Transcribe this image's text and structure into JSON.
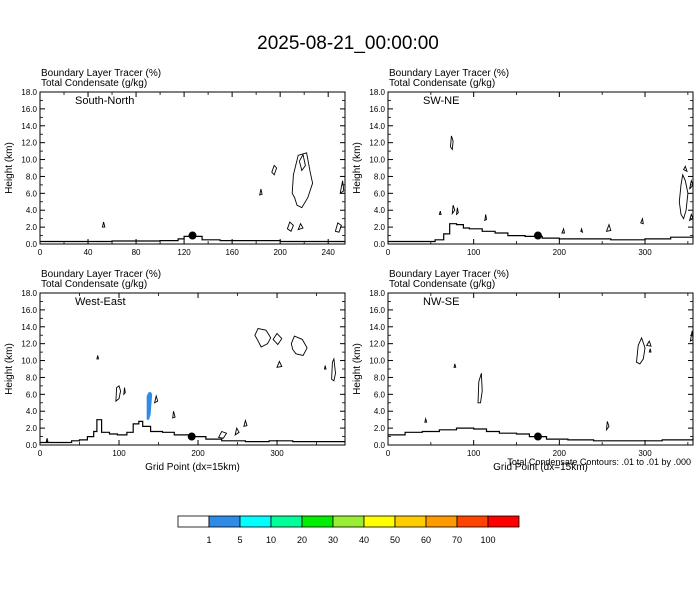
{
  "title": "2025-08-21_00:00:00",
  "colors": {
    "tracer": "#2e8ce6",
    "terrain": "#000000",
    "contour": "#000000"
  },
  "chart_data": [
    {
      "type": "contour",
      "panel": "South-North",
      "var1": "Boundary Layer Tracer   (%)",
      "var2": "Total Condensate   (g/kg)",
      "ylabel": "Height (km)",
      "xlabel": "",
      "xlim": [
        0,
        254
      ],
      "ylim": [
        0,
        18
      ],
      "xticks": [
        0,
        40,
        80,
        120,
        160,
        200,
        240
      ],
      "yticks": [
        "0.0",
        "2.0",
        "4.0",
        "6.0",
        "8.0",
        "10.0",
        "12.0",
        "14.0",
        "16.0",
        "18.0"
      ],
      "marker": {
        "x": 127,
        "y": 1.0
      },
      "terrain": [
        [
          0,
          0.3
        ],
        [
          30,
          0.3
        ],
        [
          60,
          0.35
        ],
        [
          80,
          0.35
        ],
        [
          100,
          0.4
        ],
        [
          115,
          0.6
        ],
        [
          120,
          0.9
        ],
        [
          130,
          0.9
        ],
        [
          135,
          0.5
        ],
        [
          150,
          0.4
        ],
        [
          200,
          0.3
        ],
        [
          254,
          0.3
        ]
      ],
      "tracer_patches": [],
      "contours": [
        [
          [
            250,
            6.0
          ],
          [
            252,
            7.5
          ],
          [
            253,
            6.3
          ]
        ],
        [
          [
            210,
            6.0
          ],
          [
            211,
            8.2
          ],
          [
            215,
            10.5
          ],
          [
            222,
            10.8
          ],
          [
            225,
            8.5
          ],
          [
            227,
            7.2
          ],
          [
            223,
            5.5
          ],
          [
            218,
            4.3
          ],
          [
            214,
            4.6
          ],
          [
            212,
            5.5
          ]
        ],
        [
          [
            216,
            9.8
          ],
          [
            219,
            10.6
          ],
          [
            221,
            9.3
          ],
          [
            218,
            8.7
          ]
        ],
        [
          [
            193,
            8.5
          ],
          [
            195,
            9.3
          ],
          [
            197,
            9.0
          ],
          [
            195,
            8.2
          ]
        ],
        [
          [
            206,
            1.8
          ],
          [
            208,
            2.6
          ],
          [
            211,
            2.2
          ],
          [
            209,
            1.5
          ]
        ],
        [
          [
            215,
            1.7
          ],
          [
            217,
            2.4
          ],
          [
            219,
            1.9
          ]
        ],
        [
          [
            246,
            1.5
          ],
          [
            248,
            2.5
          ],
          [
            251,
            2.2
          ],
          [
            249,
            1.4
          ]
        ],
        [
          [
            183,
            5.8
          ],
          [
            184,
            6.5
          ],
          [
            185,
            5.9
          ]
        ],
        [
          [
            52,
            2.0
          ],
          [
            53,
            2.6
          ],
          [
            54,
            2.0
          ]
        ]
      ]
    },
    {
      "type": "contour",
      "panel": "SW-NE",
      "var1": "Boundary Layer Tracer   (%)",
      "var2": "Total Condensate   (g/kg)",
      "ylabel": "Height (km)",
      "xlabel": "",
      "xlim": [
        0,
        356
      ],
      "ylim": [
        0,
        18
      ],
      "xticks": [
        0,
        100,
        200,
        300
      ],
      "yticks": [
        "0.0",
        "2.0",
        "4.0",
        "6.0",
        "8.0",
        "10.0",
        "12.0",
        "14.0",
        "16.0",
        "18.0"
      ],
      "marker": {
        "x": 175,
        "y": 1.0
      },
      "terrain": [
        [
          0,
          0.3
        ],
        [
          40,
          0.3
        ],
        [
          55,
          0.5
        ],
        [
          65,
          1.2
        ],
        [
          72,
          2.4
        ],
        [
          80,
          2.3
        ],
        [
          88,
          1.9
        ],
        [
          95,
          1.8
        ],
        [
          110,
          1.5
        ],
        [
          125,
          1.3
        ],
        [
          140,
          1.0
        ],
        [
          160,
          0.9
        ],
        [
          180,
          0.7
        ],
        [
          200,
          0.6
        ],
        [
          230,
          0.6
        ],
        [
          260,
          0.5
        ],
        [
          300,
          0.6
        ],
        [
          330,
          0.8
        ],
        [
          356,
          0.9
        ]
      ],
      "tracer_patches": [],
      "contours": [
        [
          [
            73,
            11.5
          ],
          [
            74,
            12.8
          ],
          [
            76,
            12.2
          ],
          [
            75,
            11.2
          ]
        ],
        [
          [
            75,
            3.6
          ],
          [
            76,
            4.6
          ],
          [
            78,
            4.0
          ]
        ],
        [
          [
            80,
            3.5
          ],
          [
            81,
            4.3
          ],
          [
            82,
            3.7
          ]
        ],
        [
          [
            60,
            3.5
          ],
          [
            61,
            3.9
          ],
          [
            62,
            3.5
          ]
        ],
        [
          [
            113,
            2.8
          ],
          [
            114,
            3.5
          ],
          [
            115,
            2.9
          ]
        ],
        [
          [
            340,
            5.0
          ],
          [
            342,
            7.0
          ],
          [
            344,
            8.2
          ],
          [
            347,
            7.5
          ],
          [
            350,
            6.0
          ],
          [
            348,
            4.0
          ],
          [
            345,
            3.0
          ],
          [
            342,
            3.5
          ]
        ],
        [
          [
            345,
            8.8
          ],
          [
            347,
            9.2
          ],
          [
            349,
            8.6
          ]
        ],
        [
          [
            352,
            6.5
          ],
          [
            354,
            7.5
          ],
          [
            356,
            7.0
          ]
        ],
        [
          [
            295,
            2.5
          ],
          [
            297,
            3.0
          ],
          [
            298,
            2.4
          ]
        ],
        [
          [
            352,
            2.8
          ],
          [
            354,
            3.5
          ],
          [
            356,
            3.0
          ]
        ],
        [
          [
            255,
            1.5
          ],
          [
            258,
            2.3
          ],
          [
            260,
            1.6
          ]
        ],
        [
          [
            203,
            1.3
          ],
          [
            205,
            1.8
          ],
          [
            206,
            1.3
          ]
        ],
        [
          [
            225,
            1.5
          ],
          [
            226,
            1.8
          ],
          [
            227,
            1.4
          ]
        ]
      ]
    },
    {
      "type": "contour",
      "panel": "West-East",
      "var1": "Boundary Layer Tracer   (%)",
      "var2": "Total Condensate   (g/kg)",
      "ylabel": "Height (km)",
      "xlabel": "Grid Point (dx=15km)",
      "xlim": [
        0,
        386
      ],
      "ylim": [
        0,
        18
      ],
      "xticks": [
        0,
        100,
        200,
        300
      ],
      "yticks": [
        "0.0",
        "2.0",
        "4.0",
        "6.0",
        "8.0",
        "10.0",
        "12.0",
        "14.0",
        "16.0",
        "18.0"
      ],
      "marker": {
        "x": 192,
        "y": 1.0
      },
      "terrain": [
        [
          0,
          0.3
        ],
        [
          20,
          0.3
        ],
        [
          40,
          0.5
        ],
        [
          50,
          0.6
        ],
        [
          60,
          1.0
        ],
        [
          68,
          1.6
        ],
        [
          72,
          3.0
        ],
        [
          78,
          1.5
        ],
        [
          88,
          1.3
        ],
        [
          98,
          1.2
        ],
        [
          110,
          1.5
        ],
        [
          118,
          2.5
        ],
        [
          125,
          2.8
        ],
        [
          130,
          2.2
        ],
        [
          140,
          1.6
        ],
        [
          155,
          1.5
        ],
        [
          170,
          1.2
        ],
        [
          190,
          1.0
        ],
        [
          210,
          0.7
        ],
        [
          230,
          0.5
        ],
        [
          260,
          0.4
        ],
        [
          290,
          0.5
        ],
        [
          320,
          0.4
        ],
        [
          386,
          0.4
        ]
      ],
      "tracer_patches": [
        [
          [
            135,
            3.0
          ],
          [
            135,
            5.8
          ],
          [
            137,
            6.2
          ],
          [
            140,
            6.3
          ],
          [
            142,
            6.0
          ],
          [
            141,
            4.8
          ],
          [
            140,
            3.6
          ],
          [
            138,
            3.0
          ]
        ]
      ],
      "contours": [
        [
          [
            96,
            5.2
          ],
          [
            97,
            6.8
          ],
          [
            100,
            7.0
          ],
          [
            102,
            6.4
          ],
          [
            100,
            5.5
          ]
        ],
        [
          [
            106,
            6.0
          ],
          [
            107,
            6.8
          ],
          [
            108,
            6.2
          ]
        ],
        [
          [
            145,
            5.0
          ],
          [
            147,
            5.8
          ],
          [
            149,
            5.2
          ]
        ],
        [
          [
            168,
            3.2
          ],
          [
            169,
            4.0
          ],
          [
            171,
            3.3
          ]
        ],
        [
          [
            72,
            10.2
          ],
          [
            73,
            10.6
          ],
          [
            74,
            10.2
          ]
        ],
        [
          [
            272,
            13.0
          ],
          [
            276,
            13.8
          ],
          [
            286,
            13.6
          ],
          [
            292,
            12.7
          ],
          [
            288,
            12.0
          ],
          [
            280,
            11.6
          ],
          [
            276,
            12.3
          ]
        ],
        [
          [
            295,
            12.5
          ],
          [
            300,
            13.2
          ],
          [
            306,
            12.6
          ],
          [
            301,
            11.9
          ]
        ],
        [
          [
            318,
            12.0
          ],
          [
            322,
            12.9
          ],
          [
            332,
            12.5
          ],
          [
            338,
            11.5
          ],
          [
            333,
            10.6
          ],
          [
            324,
            10.8
          ],
          [
            320,
            11.3
          ]
        ],
        [
          [
            300,
            9.2
          ],
          [
            303,
            9.9
          ],
          [
            306,
            9.3
          ]
        ],
        [
          [
            369,
            7.8
          ],
          [
            370,
            9.8
          ],
          [
            372,
            10.2
          ],
          [
            374,
            8.5
          ],
          [
            372,
            7.6
          ]
        ],
        [
          [
            360,
            9.0
          ],
          [
            361,
            9.4
          ],
          [
            362,
            9.0
          ]
        ],
        [
          [
            226,
            0.9
          ],
          [
            230,
            1.6
          ],
          [
            236,
            1.4
          ],
          [
            232,
            0.8
          ]
        ],
        [
          [
            247,
            1.2
          ],
          [
            249,
            2.0
          ],
          [
            252,
            1.5
          ]
        ],
        [
          [
            258,
            2.2
          ],
          [
            260,
            2.9
          ],
          [
            262,
            2.3
          ]
        ],
        [
          [
            8,
            0.4
          ],
          [
            9,
            0.8
          ],
          [
            10,
            0.4
          ]
        ]
      ]
    },
    {
      "type": "contour",
      "panel": "NW-SE",
      "var1": "Boundary Layer Tracer   (%)",
      "var2": "Total Condensate   (g/kg)",
      "ylabel": "Height (km)",
      "xlabel": "Grid Point (dx=15km)",
      "xlim": [
        0,
        356
      ],
      "ylim": [
        0,
        18
      ],
      "xticks": [
        0,
        100,
        200,
        300
      ],
      "yticks": [
        "0.0",
        "2.0",
        "4.0",
        "6.0",
        "8.0",
        "10.0",
        "12.0",
        "14.0",
        "16.0",
        "18.0"
      ],
      "marker": {
        "x": 175,
        "y": 1.0
      },
      "terrain": [
        [
          0,
          1.2
        ],
        [
          20,
          1.5
        ],
        [
          40,
          1.6
        ],
        [
          60,
          1.8
        ],
        [
          80,
          2.0
        ],
        [
          100,
          1.9
        ],
        [
          115,
          1.6
        ],
        [
          130,
          1.4
        ],
        [
          150,
          1.3
        ],
        [
          165,
          1.0
        ],
        [
          185,
          0.7
        ],
        [
          210,
          0.6
        ],
        [
          240,
          0.5
        ],
        [
          280,
          0.5
        ],
        [
          320,
          0.6
        ],
        [
          356,
          0.8
        ]
      ],
      "tracer_patches": [],
      "contours": [
        [
          [
            105,
            5.0
          ],
          [
            106,
            7.5
          ],
          [
            109,
            8.5
          ],
          [
            110,
            6.4
          ],
          [
            108,
            5.0
          ]
        ],
        [
          [
            77,
            9.2
          ],
          [
            78,
            9.6
          ],
          [
            79,
            9.2
          ]
        ],
        [
          [
            290,
            9.8
          ],
          [
            292,
            11.8
          ],
          [
            296,
            12.7
          ],
          [
            300,
            11.5
          ],
          [
            298,
            10.2
          ],
          [
            294,
            9.6
          ]
        ],
        [
          [
            302,
            11.8
          ],
          [
            305,
            12.3
          ],
          [
            307,
            11.7
          ]
        ],
        [
          [
            305,
            11.0
          ],
          [
            306,
            11.4
          ],
          [
            307,
            11.0
          ]
        ],
        [
          [
            353,
            12.3
          ],
          [
            355,
            13.5
          ],
          [
            356,
            12.5
          ]
        ],
        [
          [
            43,
            2.7
          ],
          [
            44,
            3.1
          ],
          [
            45,
            2.7
          ]
        ],
        [
          [
            255,
            1.8
          ],
          [
            256,
            2.8
          ],
          [
            258,
            2.2
          ]
        ]
      ]
    }
  ],
  "colorbar": {
    "colors": [
      "#ffffff",
      "#2e8ce6",
      "#00ffff",
      "#00ff99",
      "#00ee00",
      "#99ee33",
      "#ffff00",
      "#ffcc00",
      "#ff9900",
      "#ff4400",
      "#ff0000"
    ],
    "labels": [
      "1",
      "5",
      "10",
      "20",
      "30",
      "40",
      "50",
      "60",
      "70",
      "100"
    ]
  },
  "contour_note": "Total Condensate Contours: .01 to .01 by .000"
}
